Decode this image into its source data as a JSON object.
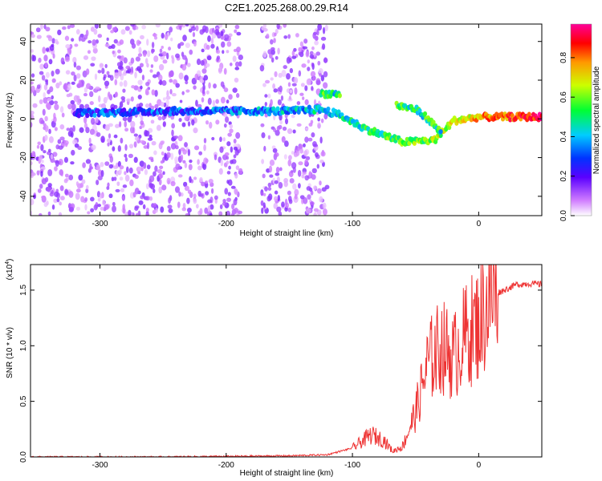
{
  "title": "C2E1.2025.268.00.29.R14",
  "chart_data": [
    {
      "type": "heatmap",
      "xlabel": "Height of straight line (km)",
      "ylabel": "Frequency (Hz)",
      "xlim": [
        -355,
        50
      ],
      "ylim": [
        -50,
        49
      ],
      "xticks": [
        -300,
        -200,
        -100,
        0
      ],
      "yticks": [
        -40,
        -20,
        0,
        20,
        40
      ],
      "colorbar": {
        "label": "Normalized spectral amplitude",
        "range": [
          0.0,
          0.97
        ],
        "ticks": [
          0.0,
          0.2,
          0.4,
          0.6,
          0.8
        ]
      },
      "features": [
        {
          "name": "noise-background",
          "x_range": [
            -355,
            -120
          ],
          "freq_range": [
            -50,
            49
          ],
          "amplitude": 0.1
        },
        {
          "name": "main-signal",
          "path": [
            [
              -320,
              3
            ],
            [
              -250,
              4
            ],
            [
              -200,
              4
            ],
            [
              -150,
              4
            ],
            [
              -125,
              5
            ],
            [
              -110,
              2
            ],
            [
              -90,
              -5
            ],
            [
              -60,
              -12
            ],
            [
              -35,
              -11
            ],
            [
              -20,
              -1
            ],
            [
              0,
              1
            ],
            [
              30,
              1
            ],
            [
              50,
              1
            ]
          ],
          "amplitude_start": 0.3,
          "amplitude_end": 0.95
        },
        {
          "name": "branch-upper",
          "path": [
            [
              -125,
              13
            ],
            [
              -110,
              13
            ]
          ],
          "amplitude": 0.5
        },
        {
          "name": "branch-arc",
          "path": [
            [
              -65,
              7
            ],
            [
              -50,
              5
            ],
            [
              -40,
              0
            ],
            [
              -30,
              -7
            ]
          ],
          "amplitude": 0.5
        }
      ]
    },
    {
      "type": "line",
      "xlabel": "Height of straight line (km)",
      "ylabel": "SNR (10 * v/v)",
      "yscale_label": "(x10",
      "yscale_exp": "4",
      "xlim": [
        -355,
        50
      ],
      "ylim": [
        0.0,
        1.73
      ],
      "xticks": [
        -300,
        -200,
        -100,
        0
      ],
      "yticks": [
        0.0,
        0.5,
        1.0,
        1.5
      ],
      "ytick_labels": [
        "0.0",
        "0.5",
        "1.0",
        "1.5"
      ],
      "color": "#ee3333",
      "series": [
        {
          "name": "SNR",
          "x": [
            -355,
            -300,
            -250,
            -200,
            -150,
            -120,
            -100,
            -85,
            -75,
            -68,
            -60,
            -50,
            -40,
            -30,
            -20,
            -10,
            0,
            10,
            20,
            30,
            40,
            50
          ],
          "values": [
            0.0,
            0.0,
            0.0,
            0.005,
            0.01,
            0.02,
            0.08,
            0.2,
            0.15,
            0.05,
            0.1,
            0.4,
            0.85,
            1.0,
            0.9,
            1.1,
            1.2,
            1.45,
            1.5,
            1.55,
            1.56,
            1.55
          ]
        }
      ]
    }
  ]
}
